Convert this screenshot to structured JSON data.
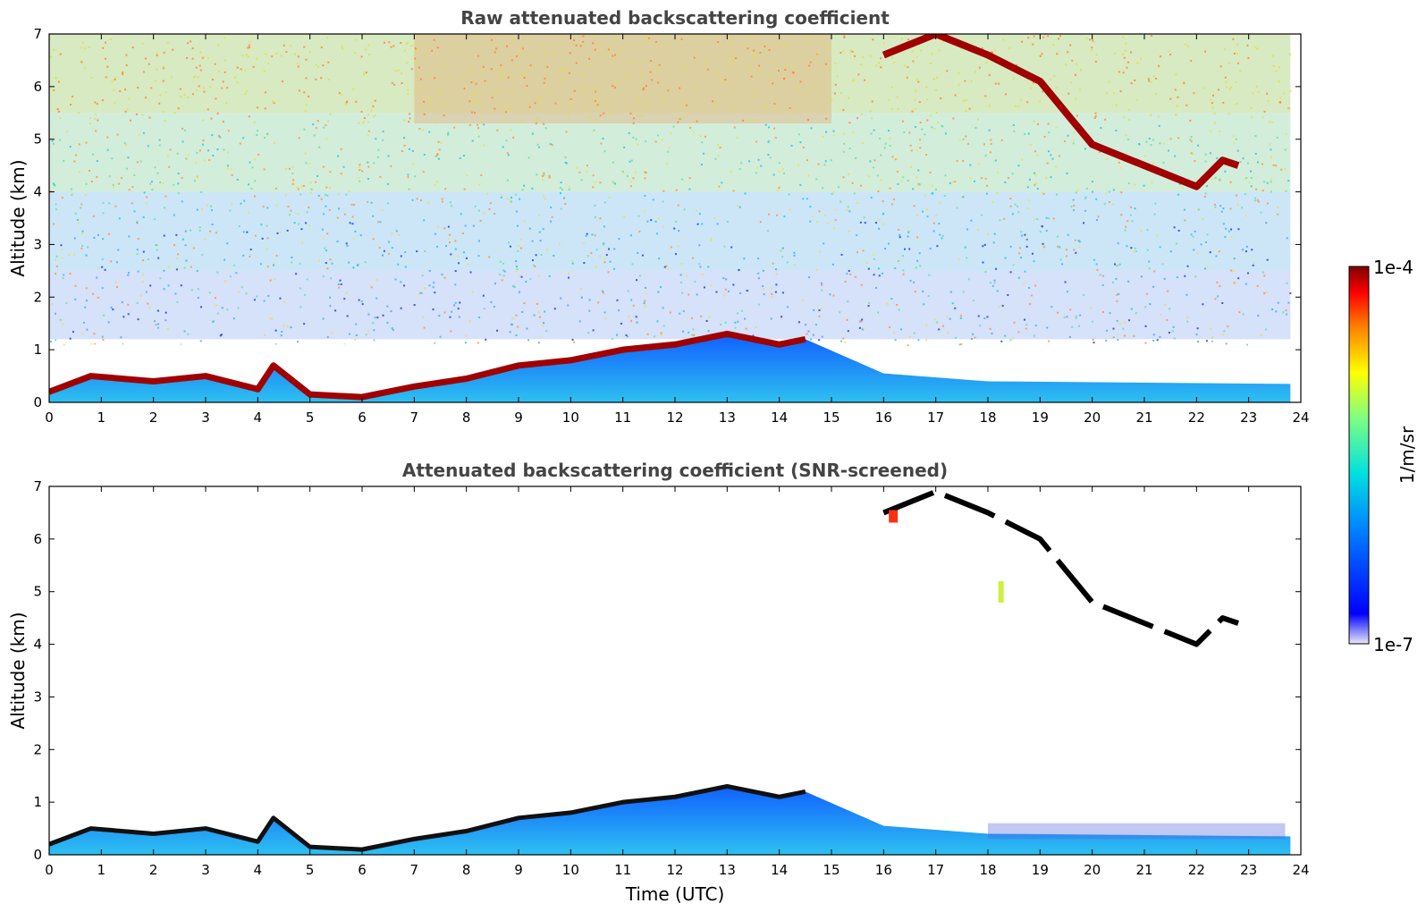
{
  "chart_data": [
    {
      "type": "heatmap",
      "title": "Raw attenuated backscattering coefficient",
      "xlabel": "",
      "ylabel": "Altitude (km)",
      "xlim": [
        0,
        24
      ],
      "ylim": [
        0,
        7
      ],
      "x_ticks": [
        "0",
        "1",
        "2",
        "3",
        "4",
        "5",
        "6",
        "7",
        "8",
        "9",
        "10",
        "11",
        "12",
        "13",
        "14",
        "15",
        "16",
        "17",
        "18",
        "19",
        "20",
        "21",
        "22",
        "23",
        "24"
      ],
      "y_ticks": [
        "0",
        "1",
        "2",
        "3",
        "4",
        "5",
        "6",
        "7"
      ],
      "features": {
        "boundary_layer_top_km": [
          [
            0,
            0.2
          ],
          [
            0.8,
            0.5
          ],
          [
            2,
            0.4
          ],
          [
            3,
            0.5
          ],
          [
            4,
            0.25
          ],
          [
            4.3,
            0.7
          ],
          [
            5,
            0.15
          ],
          [
            6,
            0.1
          ],
          [
            7,
            0.3
          ],
          [
            8,
            0.45
          ],
          [
            9,
            0.7
          ],
          [
            10,
            0.8
          ],
          [
            11,
            1.0
          ],
          [
            12,
            1.1
          ],
          [
            13,
            1.3
          ],
          [
            14,
            1.1
          ],
          [
            14.5,
            1.2
          ]
        ],
        "cloud_layer_km": [
          [
            16,
            6.6
          ],
          [
            17,
            7.0
          ],
          [
            18,
            6.6
          ],
          [
            19,
            6.1
          ],
          [
            19.5,
            5.5
          ],
          [
            20,
            4.9
          ],
          [
            21,
            4.5
          ],
          [
            22,
            4.1
          ],
          [
            22.5,
            4.6
          ],
          [
            22.8,
            4.5
          ]
        ]
      }
    },
    {
      "type": "heatmap",
      "title": "Attenuated backscattering coefficient (SNR-screened)",
      "xlabel": "Time (UTC)",
      "ylabel": "Altitude (km)",
      "xlim": [
        0,
        24
      ],
      "ylim": [
        0,
        7
      ],
      "x_ticks": [
        "0",
        "1",
        "2",
        "3",
        "4",
        "5",
        "6",
        "7",
        "8",
        "9",
        "10",
        "11",
        "12",
        "13",
        "14",
        "15",
        "16",
        "17",
        "18",
        "19",
        "20",
        "21",
        "22",
        "23",
        "24"
      ],
      "y_ticks": [
        "0",
        "1",
        "2",
        "3",
        "4",
        "5",
        "6",
        "7"
      ]
    }
  ],
  "colorbar": {
    "max_label": "1e-4",
    "min_label": "1e-7",
    "unit_label": "1/m/sr",
    "scale": "log",
    "colors": [
      "#e8e8f8",
      "#0000ff",
      "#0080ff",
      "#00e0e0",
      "#80ff80",
      "#ffff00",
      "#ff8000",
      "#ff0000",
      "#800000"
    ]
  }
}
